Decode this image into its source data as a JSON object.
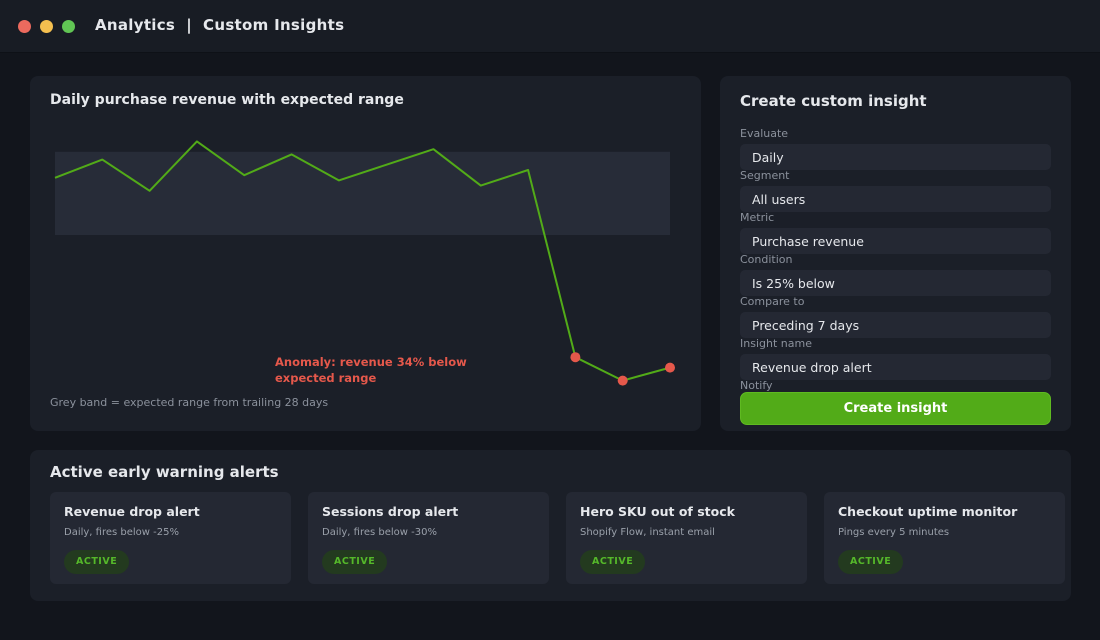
{
  "window": {
    "title": "Analytics  |  Custom Insights"
  },
  "chart_panel": {
    "title": "Daily purchase revenue with expected range",
    "anomaly_label": "Anomaly: revenue 34% below expected range",
    "caption": "Grey band = expected range from trailing 28 days"
  },
  "chart_data": {
    "type": "line",
    "title": "Daily purchase revenue with expected range",
    "xlabel": "",
    "ylabel": "",
    "grid": false,
    "ylim": [
      0,
      100
    ],
    "x": [
      1,
      2,
      3,
      4,
      5,
      6,
      7,
      8,
      9,
      10,
      11,
      12,
      13,
      14
    ],
    "series": [
      {
        "values": [
          77,
          84,
          72,
          91,
          78,
          86,
          76,
          82,
          88,
          74,
          80,
          8,
          -1,
          4
        ]
      }
    ],
    "expected_range": [
      55,
      87
    ],
    "anomaly_indices": [
      11,
      12,
      13
    ],
    "colors": {
      "line": "#52ab18",
      "band": "#272c38",
      "anomaly": "#e5584b"
    }
  },
  "form": {
    "title": "Create custom insight",
    "fields": [
      {
        "label": "Evaluate",
        "value": "Daily"
      },
      {
        "label": "Segment",
        "value": "All users"
      },
      {
        "label": "Metric",
        "value": "Purchase revenue"
      },
      {
        "label": "Condition",
        "value": "Is 25% below"
      },
      {
        "label": "Compare to",
        "value": "Preceding 7 days"
      },
      {
        "label": "Insight name",
        "value": "Revenue drop alert"
      }
    ],
    "notify_label": "Notify",
    "submit_label": "Create insight"
  },
  "alerts": {
    "title": "Active early warning alerts",
    "items": [
      {
        "name": "Revenue drop alert",
        "desc": "Daily, fires below -25%",
        "status": "ACTIVE"
      },
      {
        "name": "Sessions drop alert",
        "desc": "Daily, fires below -30%",
        "status": "ACTIVE"
      },
      {
        "name": "Hero SKU out of stock",
        "desc": "Shopify Flow, instant email",
        "status": "ACTIVE"
      },
      {
        "name": "Checkout uptime monitor",
        "desc": "Pings every 5 minutes",
        "status": "ACTIVE"
      }
    ]
  },
  "colors": {
    "accent": "#52ab18",
    "danger": "#e5584b",
    "background": "#12151c",
    "card": "#1b1f28"
  }
}
